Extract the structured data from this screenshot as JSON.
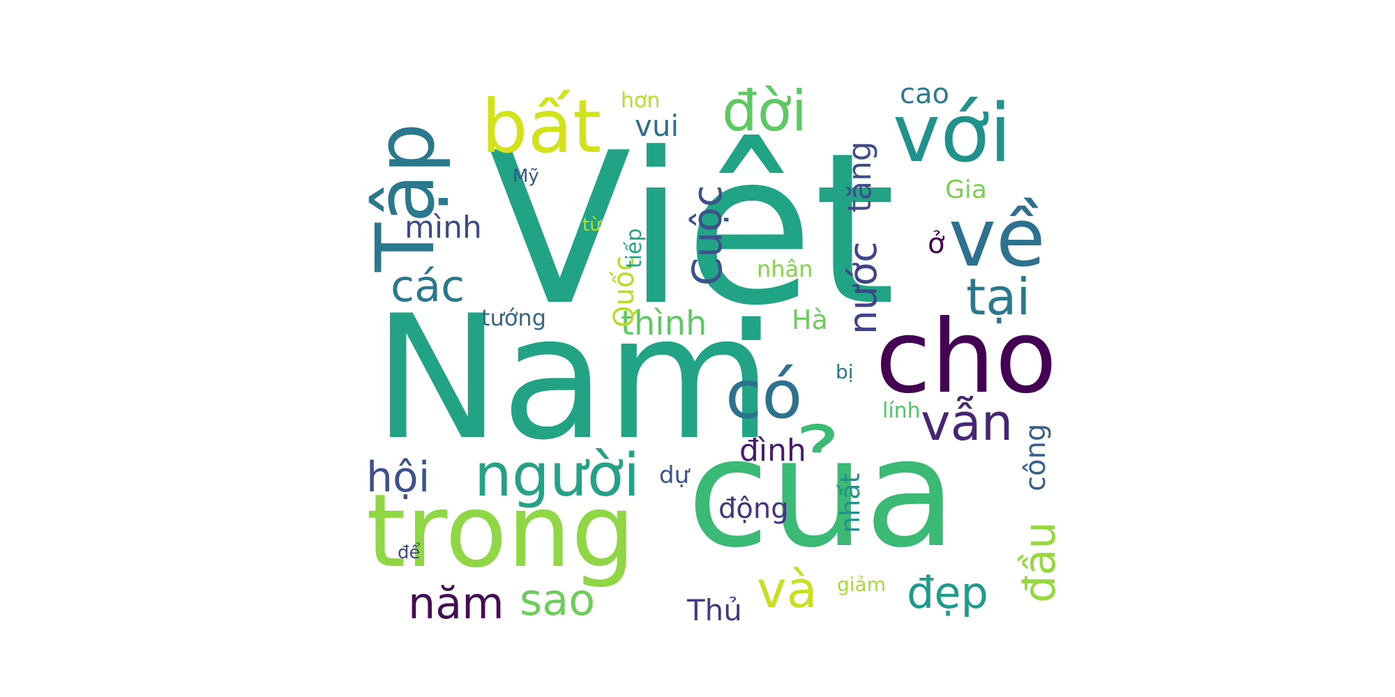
{
  "words": [
    {
      "text": "Việt",
      "color": "#21a386"
    },
    {
      "text": "Nam",
      "color": "#22a385"
    },
    {
      "text": "của",
      "color": "#3bba75"
    },
    {
      "text": "trong",
      "color": "#8fd744"
    },
    {
      "text": "cho",
      "color": "#440154"
    },
    {
      "text": "với",
      "color": "#21918c"
    },
    {
      "text": "về",
      "color": "#2c728e"
    },
    {
      "text": "bất",
      "color": "#d2e21b"
    },
    {
      "text": "Tập",
      "color": "#2a788e"
    },
    {
      "text": "có",
      "color": "#2c728e"
    },
    {
      "text": "đời",
      "color": "#5ec962"
    },
    {
      "text": "người",
      "color": "#25a188"
    },
    {
      "text": "Cuộc",
      "color": "#3b528b"
    },
    {
      "text": "tại",
      "color": "#2a788e"
    },
    {
      "text": "vẫn",
      "color": "#482475"
    },
    {
      "text": "và",
      "color": "#c8e020"
    },
    {
      "text": "hội",
      "color": "#3b528b"
    },
    {
      "text": "nước",
      "color": "#404387"
    },
    {
      "text": "tăng",
      "color": "#3e4c8a"
    },
    {
      "text": "năm",
      "color": "#440d54"
    },
    {
      "text": "sao",
      "color": "#6ccd5a"
    },
    {
      "text": "đẹp",
      "color": "#1e9b8a"
    },
    {
      "text": "các",
      "color": "#2a788e"
    },
    {
      "text": "đầu",
      "color": "#95d840"
    },
    {
      "text": "công",
      "color": "#34618d"
    },
    {
      "text": "thình",
      "color": "#5ec962"
    },
    {
      "text": "mình",
      "color": "#3e4989"
    },
    {
      "text": "Quốc",
      "color": "#b5de2b"
    },
    {
      "text": "đình",
      "color": "#481a6c"
    },
    {
      "text": "nhất",
      "color": "#21918c"
    },
    {
      "text": "động",
      "color": "#46327e"
    },
    {
      "text": "vui",
      "color": "#2e6e8e"
    },
    {
      "text": "cao",
      "color": "#297b8e"
    },
    {
      "text": "Gia",
      "color": "#7ad151"
    },
    {
      "text": "Thủ",
      "color": "#443a83"
    },
    {
      "text": "Hà",
      "color": "#6ccd5a"
    },
    {
      "text": "tướng",
      "color": "#31688e"
    },
    {
      "text": "ở",
      "color": "#440154"
    },
    {
      "text": "dự",
      "color": "#3b528b"
    },
    {
      "text": "nhân",
      "color": "#84d44b"
    },
    {
      "text": "lính",
      "color": "#52c569"
    },
    {
      "text": "hơn",
      "color": "#b5de2b"
    },
    {
      "text": "Mỹ",
      "color": "#3b528b"
    },
    {
      "text": "từ",
      "color": "#c2df23"
    },
    {
      "text": "tiếp",
      "color": "#20a386"
    },
    {
      "text": "bị",
      "color": "#2a788e"
    },
    {
      "text": "giảm",
      "color": "#a8db34"
    },
    {
      "text": "để",
      "color": "#3e4989"
    }
  ]
}
